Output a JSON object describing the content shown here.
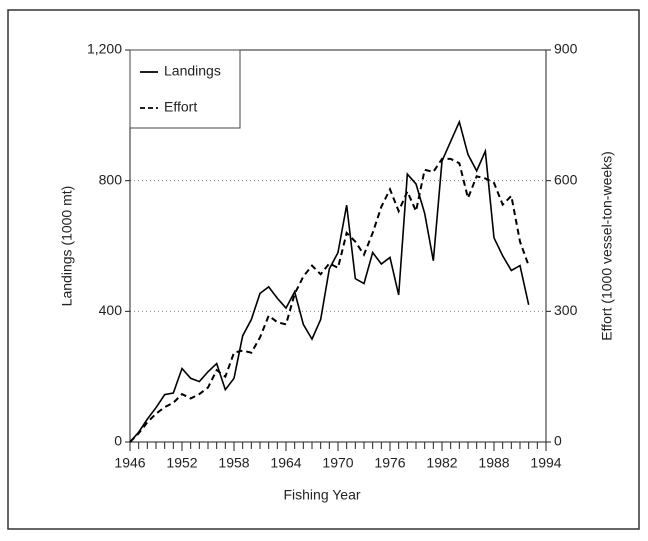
{
  "chart_data": {
    "type": "line",
    "xlabel": "Fishing Year",
    "ylabel": "Landings (1000 mt)",
    "y2label": "Effort (1000 vessel-ton-weeks)",
    "x": [
      1946,
      1947,
      1948,
      1949,
      1950,
      1951,
      1952,
      1953,
      1954,
      1955,
      1956,
      1957,
      1958,
      1959,
      1960,
      1961,
      1962,
      1963,
      1964,
      1965,
      1966,
      1967,
      1968,
      1969,
      1970,
      1971,
      1972,
      1973,
      1974,
      1975,
      1976,
      1977,
      1978,
      1979,
      1980,
      1981,
      1982,
      1983,
      1984,
      1985,
      1986,
      1987,
      1988,
      1989,
      1990,
      1991,
      1992
    ],
    "series": [
      {
        "name": "Landings",
        "color": "#000000",
        "dash": false,
        "values": [
          0,
          30,
          70,
          105,
          145,
          150,
          225,
          195,
          185,
          215,
          240,
          160,
          195,
          325,
          375,
          455,
          475,
          440,
          410,
          460,
          360,
          315,
          375,
          530,
          580,
          725,
          500,
          485,
          580,
          545,
          565,
          450,
          820,
          790,
          700,
          555,
          860,
          920,
          980,
          880,
          830,
          890,
          625,
          570,
          525,
          540,
          420
        ]
      },
      {
        "name": "Effort",
        "color": "#000000",
        "dash": true,
        "axis": "y2",
        "values": [
          0,
          20,
          45,
          65,
          80,
          90,
          110,
          100,
          110,
          125,
          165,
          150,
          205,
          210,
          205,
          240,
          290,
          275,
          270,
          340,
          380,
          405,
          385,
          410,
          400,
          480,
          460,
          430,
          480,
          540,
          580,
          530,
          575,
          530,
          625,
          620,
          650,
          650,
          640,
          560,
          610,
          605,
          595,
          545,
          565,
          460,
          405
        ]
      }
    ],
    "xlim": [
      1946,
      1994
    ],
    "xticks": [
      1946,
      1952,
      1958,
      1964,
      1970,
      1976,
      1982,
      1988,
      1994
    ],
    "ylim": [
      0,
      1200
    ],
    "yticks": [
      0,
      400,
      800,
      {
        "value": 1200,
        "label": "1,200"
      }
    ],
    "y2lim": [
      0,
      900
    ],
    "y2ticks": [
      0,
      300,
      600,
      900
    ],
    "grid": true,
    "legend": "upper left"
  }
}
